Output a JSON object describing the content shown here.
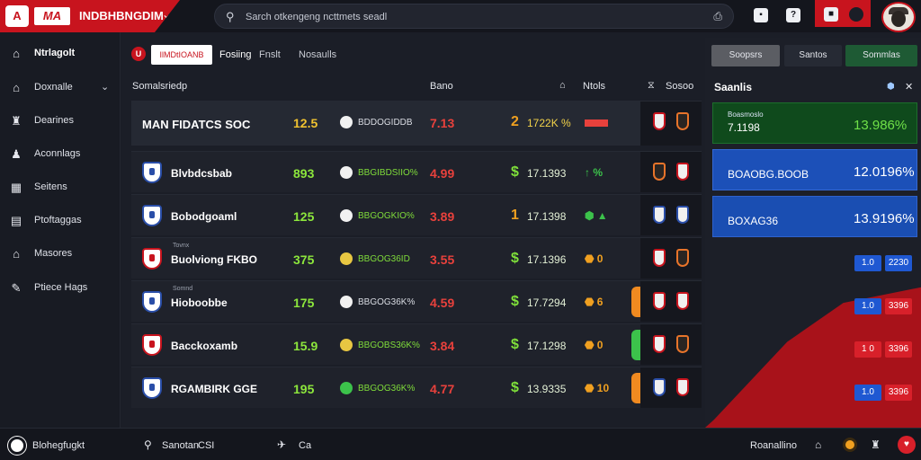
{
  "header": {
    "brand_logo": "A",
    "brand_mark": "MA",
    "brand_name": "INDBHBNGDIM",
    "caret": "⌄",
    "search_placeholder": "Sarch otkengeng ncttmets seadl",
    "search_icon": "search-icon",
    "right_icons": [
      "chat-icon",
      "help-icon",
      "notification-icon"
    ]
  },
  "sidebar": {
    "items": [
      {
        "label": "Ntrlagolt",
        "icon": "home-icon",
        "glyph": "⌂",
        "active": true
      },
      {
        "label": "Doxnalle",
        "icon": "home-icon",
        "glyph": "⌂",
        "caret": "⌄"
      },
      {
        "label": "Dearines",
        "icon": "trophy-icon",
        "glyph": "♜"
      },
      {
        "label": "Aconnlags",
        "icon": "user-icon",
        "glyph": "♟"
      },
      {
        "label": "Seitens",
        "icon": "calendar-icon",
        "glyph": "▦"
      },
      {
        "label": "Ptoftaggas",
        "icon": "list-icon",
        "glyph": "▤"
      },
      {
        "label": "Masores",
        "icon": "stadium-icon",
        "glyph": "⌂"
      },
      {
        "label": "Ptiece Hags",
        "icon": "pen-icon",
        "glyph": "✎"
      }
    ]
  },
  "filters": {
    "live_badge": "U",
    "active_pill": "IlMDtIOANB",
    "tabs": [
      "Fosiing",
      "Fnslt",
      "Nosaulls"
    ]
  },
  "table": {
    "headers": {
      "team": "Somalsriedp",
      "score": "Bano",
      "odds": "Ntols",
      "side": "Sosoo"
    },
    "featured": {
      "team": "MAN FIDATCS SOC",
      "score": "12.5",
      "market": "BDDOGIDDB",
      "odds": "7.13",
      "cur": "2",
      "amount": "1722K %"
    },
    "rows": [
      {
        "rank": "",
        "team": "Blvbdcsbab",
        "score": "893",
        "market": "BBGIBDSIIO%",
        "odds": "4.99",
        "cur": "$",
        "amount": "17.1393",
        "trend": "↑ %"
      },
      {
        "rank": "",
        "team": "Bobodgoaml",
        "score": "125",
        "market": "BBGOGKIO%",
        "odds": "3.89",
        "cur": "1",
        "amount": "17.1398",
        "trend": "⬢ ▲"
      },
      {
        "rank": "Tovnx",
        "team": "Buolviong FKBO",
        "score": "375",
        "market": "BBGOG36ID",
        "odds": "3.55",
        "cur": "$",
        "amount": "17.1396",
        "trend": "⬣ 0"
      },
      {
        "rank": "Somnd",
        "team": "Hioboobbe",
        "score": "175",
        "market": "BBGOG36K%",
        "odds": "4.59",
        "cur": "$",
        "amount": "17.7294",
        "trend": "⬣ 6"
      },
      {
        "rank": "",
        "team": "Bacckoxamb",
        "score": "15.9",
        "market": "BBGOBS36K%",
        "odds": "3.84",
        "cur": "$",
        "amount": "17.1298",
        "trend": "⬣ 0"
      },
      {
        "rank": "",
        "team": "RGAMBIRK GGE",
        "score": "195",
        "market": "BBGOG36K%",
        "odds": "4.77",
        "cur": "$",
        "amount": "13.9335",
        "trend": "⬣ 10"
      }
    ]
  },
  "right_panel": {
    "buttons": [
      "Soopsrs",
      "Santos",
      "Sommlas"
    ],
    "title": "Saanlis",
    "cards": [
      {
        "label": "Boasmoslo",
        "value": "7.1198",
        "pct": "13.986%"
      },
      {
        "label": "",
        "value": "BOAOBG.BOOB",
        "pct": "12.0196%"
      },
      {
        "label": "",
        "value": "BOXAG36",
        "pct": "13.9196%"
      }
    ],
    "chips": [
      [
        "1.0",
        "2230"
      ],
      [
        "1.0",
        "3396"
      ],
      [
        "1 0",
        "3396"
      ],
      [
        "1.0",
        "3396"
      ]
    ]
  },
  "footer": {
    "left_label": "Blohegfugkt",
    "search_label": "Sanotan",
    "search_badge": "CSI",
    "flag_label": "Ca",
    "right_label": "Roanallino"
  }
}
